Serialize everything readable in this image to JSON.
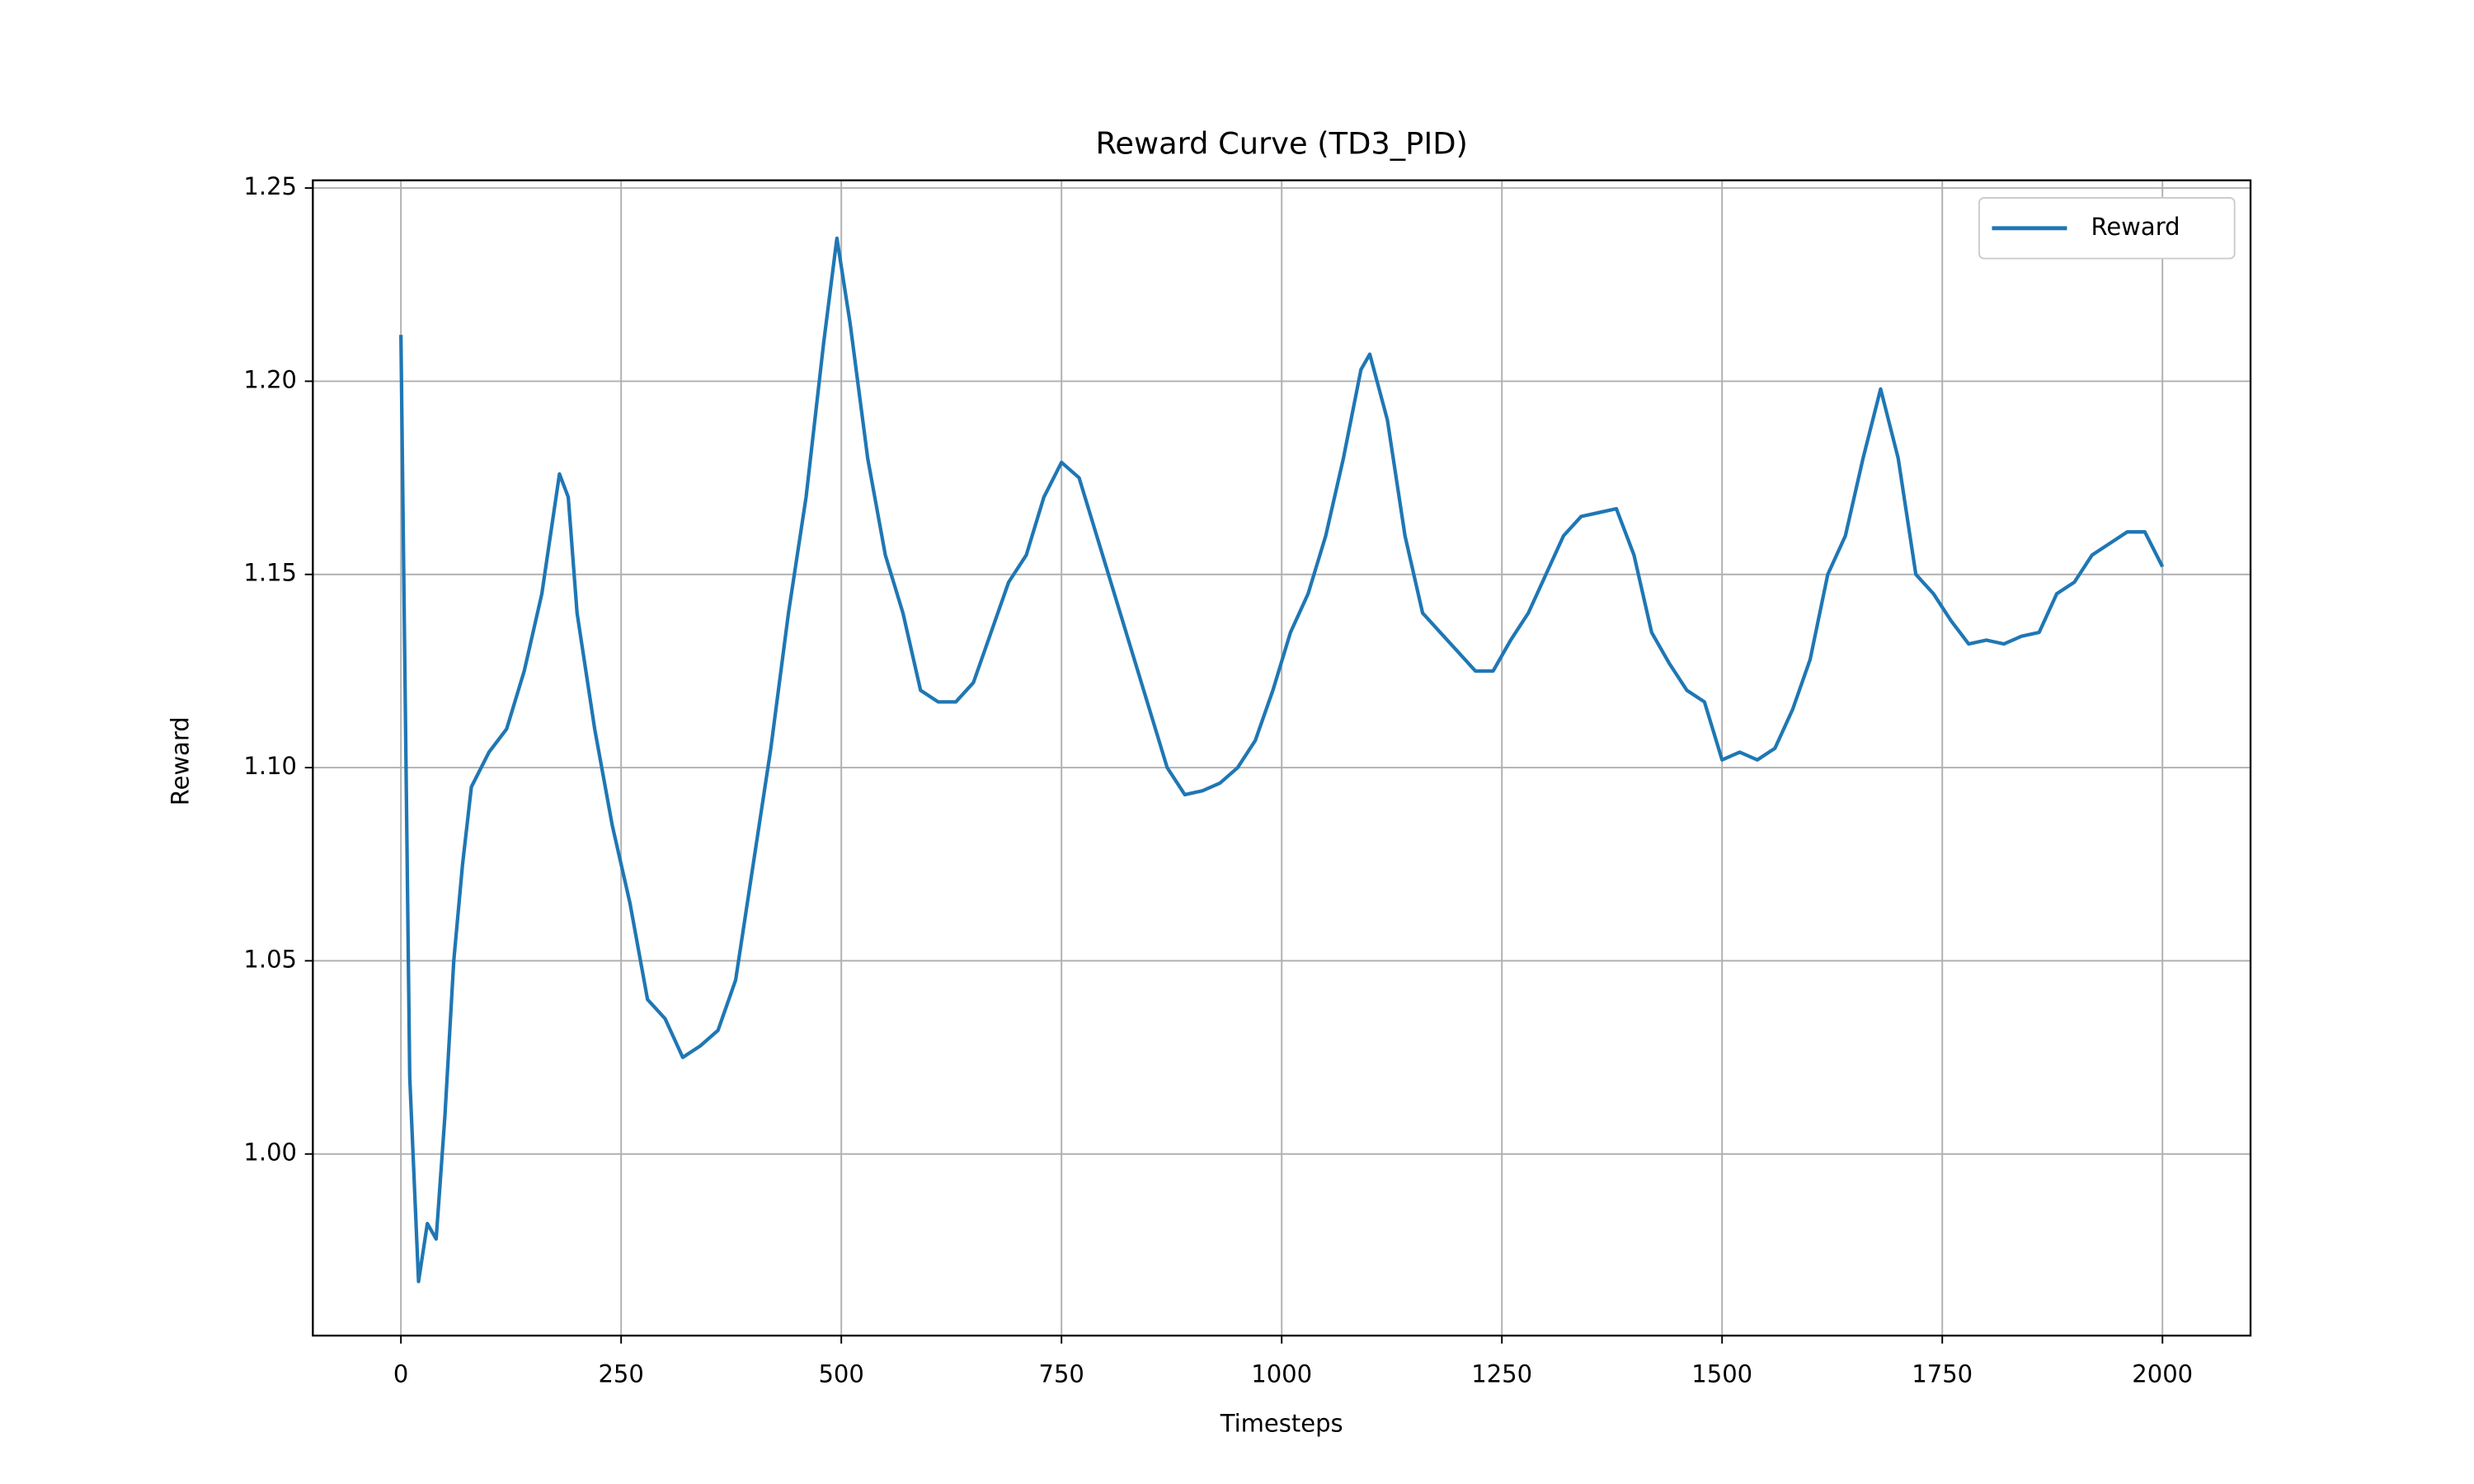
{
  "chart_data": {
    "type": "line",
    "title": "Reward Curve (TD3_PID)",
    "xlabel": "Timesteps",
    "ylabel": "Reward",
    "x": [
      0,
      10,
      20,
      30,
      40,
      50,
      60,
      70,
      80,
      100,
      120,
      140,
      160,
      180,
      190,
      200,
      220,
      240,
      260,
      280,
      300,
      320,
      340,
      360,
      380,
      400,
      420,
      440,
      460,
      480,
      495,
      510,
      530,
      550,
      570,
      590,
      610,
      630,
      650,
      670,
      690,
      710,
      730,
      750,
      770,
      790,
      810,
      830,
      850,
      870,
      890,
      910,
      930,
      950,
      970,
      990,
      1010,
      1030,
      1050,
      1070,
      1090,
      1100,
      1120,
      1140,
      1160,
      1180,
      1200,
      1220,
      1240,
      1260,
      1280,
      1300,
      1320,
      1340,
      1360,
      1380,
      1400,
      1420,
      1440,
      1460,
      1480,
      1500,
      1520,
      1540,
      1560,
      1580,
      1600,
      1620,
      1640,
      1660,
      1680,
      1700,
      1720,
      1740,
      1760,
      1780,
      1800,
      1820,
      1840,
      1860,
      1880,
      1900,
      1920,
      1940,
      1960,
      1980,
      2000
    ],
    "series": [
      {
        "name": "Reward",
        "color": "#1f77b4",
        "values": [
          1.212,
          1.02,
          0.967,
          0.982,
          0.978,
          1.01,
          1.05,
          1.075,
          1.095,
          1.104,
          1.11,
          1.125,
          1.145,
          1.176,
          1.17,
          1.14,
          1.11,
          1.085,
          1.065,
          1.04,
          1.035,
          1.025,
          1.028,
          1.032,
          1.045,
          1.075,
          1.105,
          1.14,
          1.17,
          1.21,
          1.237,
          1.215,
          1.18,
          1.155,
          1.14,
          1.12,
          1.117,
          1.117,
          1.122,
          1.135,
          1.148,
          1.155,
          1.17,
          1.179,
          1.175,
          1.16,
          1.145,
          1.13,
          1.115,
          1.1,
          1.093,
          1.094,
          1.096,
          1.1,
          1.107,
          1.12,
          1.135,
          1.145,
          1.16,
          1.18,
          1.203,
          1.207,
          1.19,
          1.16,
          1.14,
          1.135,
          1.13,
          1.125,
          1.125,
          1.133,
          1.14,
          1.15,
          1.16,
          1.165,
          1.166,
          1.167,
          1.155,
          1.135,
          1.127,
          1.12,
          1.117,
          1.102,
          1.104,
          1.102,
          1.105,
          1.115,
          1.128,
          1.15,
          1.16,
          1.18,
          1.198,
          1.18,
          1.15,
          1.145,
          1.138,
          1.132,
          1.133,
          1.132,
          1.134,
          1.135,
          1.145,
          1.148,
          1.155,
          1.158,
          1.161,
          1.161,
          1.152
        ]
      }
    ],
    "xlim": [
      -100,
      2100
    ],
    "xticks": [
      0,
      250,
      500,
      750,
      1000,
      1250,
      1500,
      1750,
      2000
    ],
    "ylim": [
      0.953,
      1.252
    ],
    "yticks": [
      {
        "value": 1,
        "label": "1.00"
      },
      1.05,
      {
        "value": 1.1,
        "label": "1.10"
      },
      1.15,
      {
        "value": 1.2,
        "label": "1.20"
      },
      1.25
    ],
    "grid": true,
    "legend": "upper right"
  }
}
